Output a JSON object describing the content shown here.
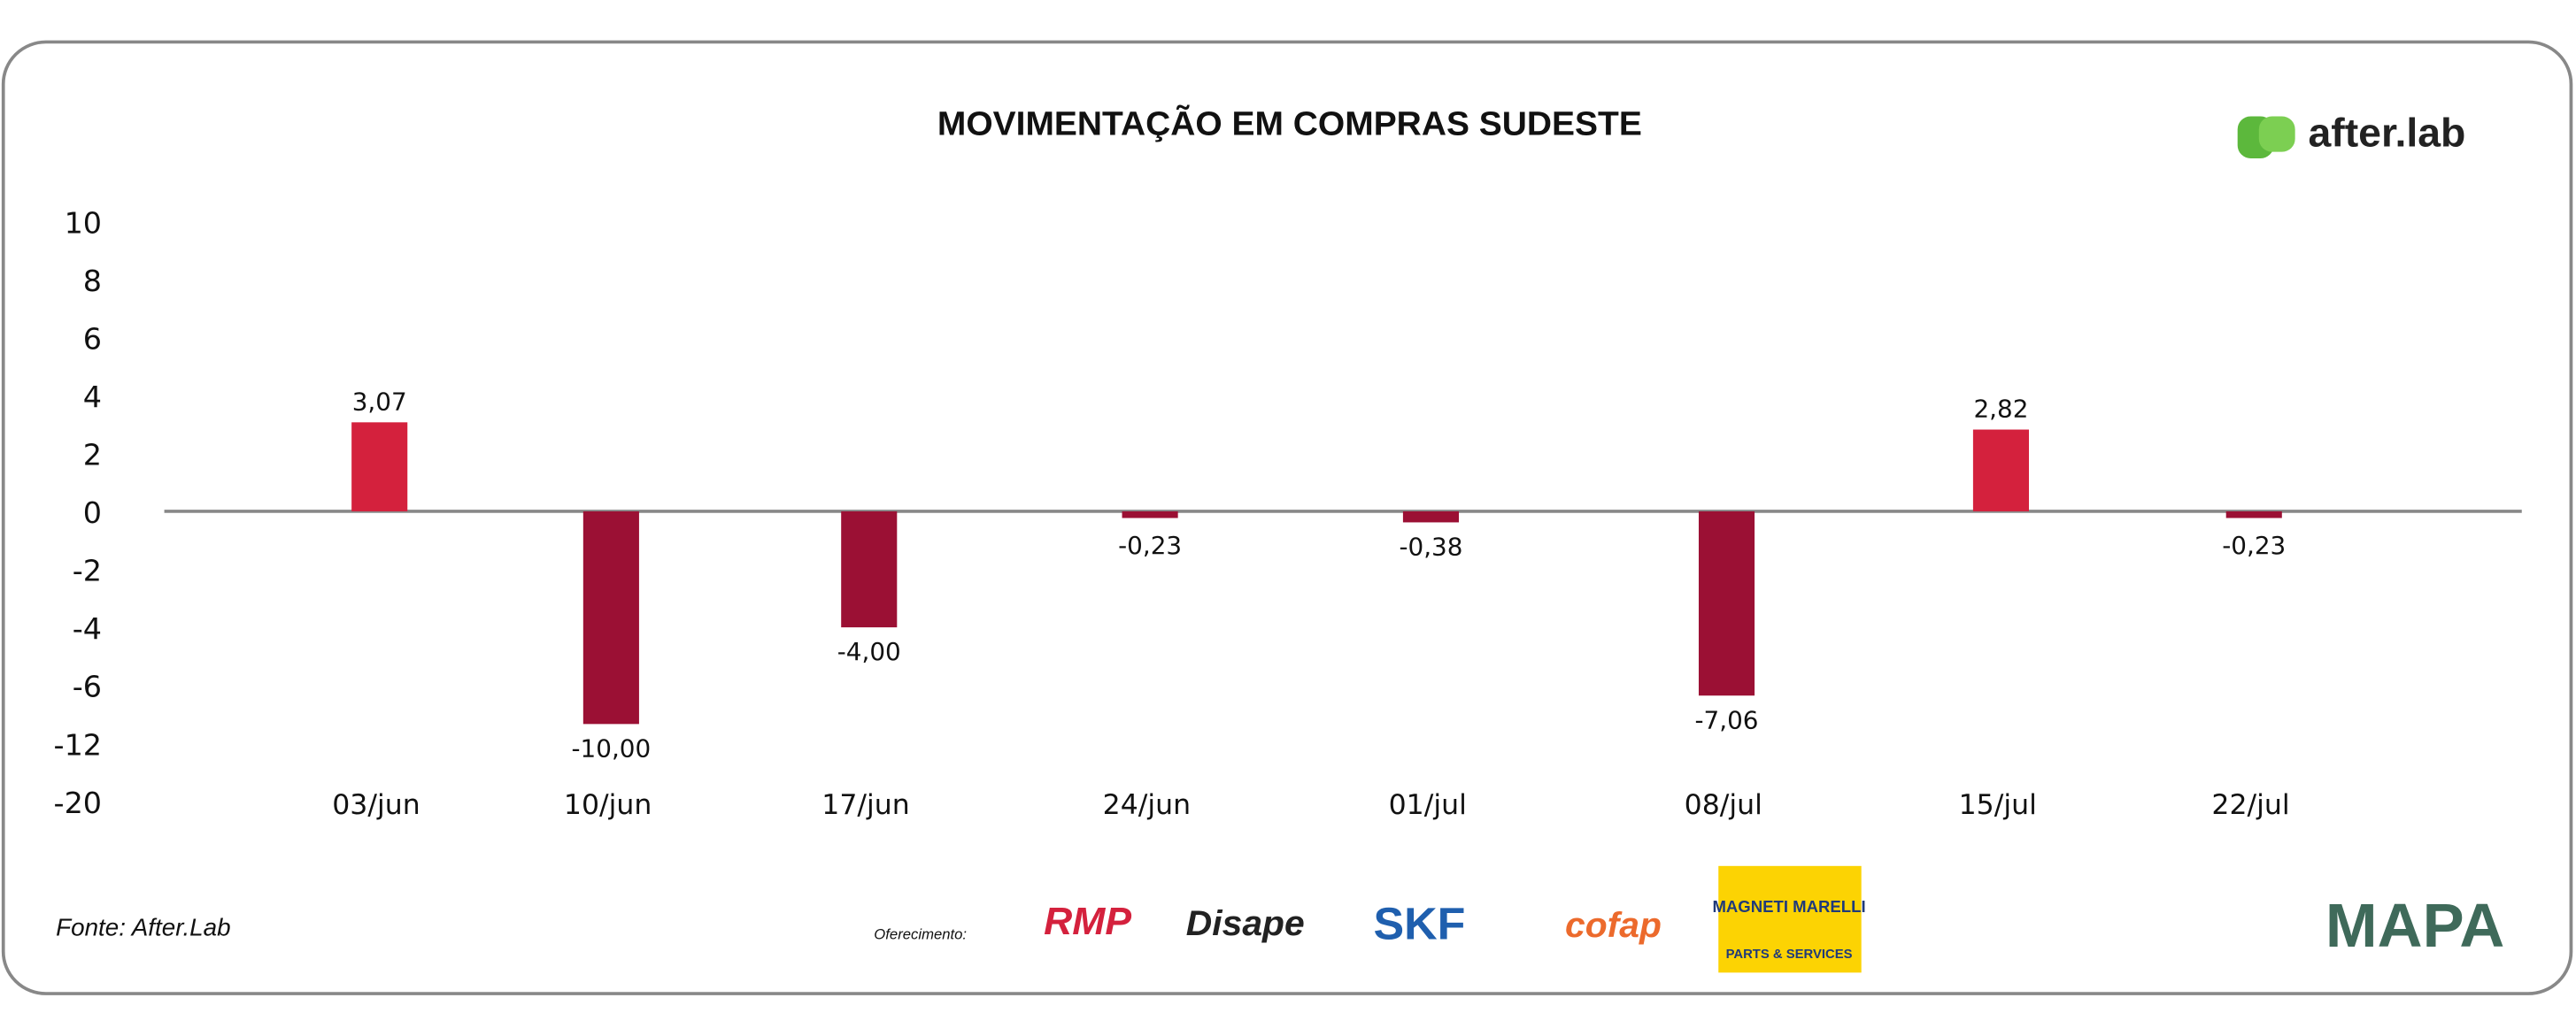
{
  "chart_data": {
    "type": "bar",
    "title": "MOVIMENTAÇÃO EM COMPRAS SUDESTE",
    "categories": [
      "03/jun",
      "10/jun",
      "17/jun",
      "24/jun",
      "01/jul",
      "08/jul",
      "15/jul",
      "22/jul"
    ],
    "series": [
      {
        "color": "#d4213d",
        "negative_color": "#9b1034",
        "values": [
          3.07,
          -10,
          -4,
          -0.23,
          -0.38,
          -7.06,
          2.82,
          -0.23
        ],
        "value_labels": [
          "3,07",
          "-10,00",
          "-4,00",
          "-0,23",
          "-0,38",
          "-7,06",
          "2,82",
          "-0,23"
        ]
      }
    ],
    "ylim": [
      -20,
      10
    ],
    "yticks": [
      10,
      8,
      6,
      4,
      2,
      0,
      -2,
      -4,
      -6,
      -12,
      -20
    ],
    "source": "Fonte: After.Lab",
    "sponsor_label": "Oferecimento:",
    "brand": "after.lab",
    "sponsors": [
      "RMP",
      "Disape",
      "SKF",
      "cofap",
      "MAGNETI MARELLI",
      "PARTS & SERVICES"
    ],
    "footer_logo": "MAPA"
  }
}
